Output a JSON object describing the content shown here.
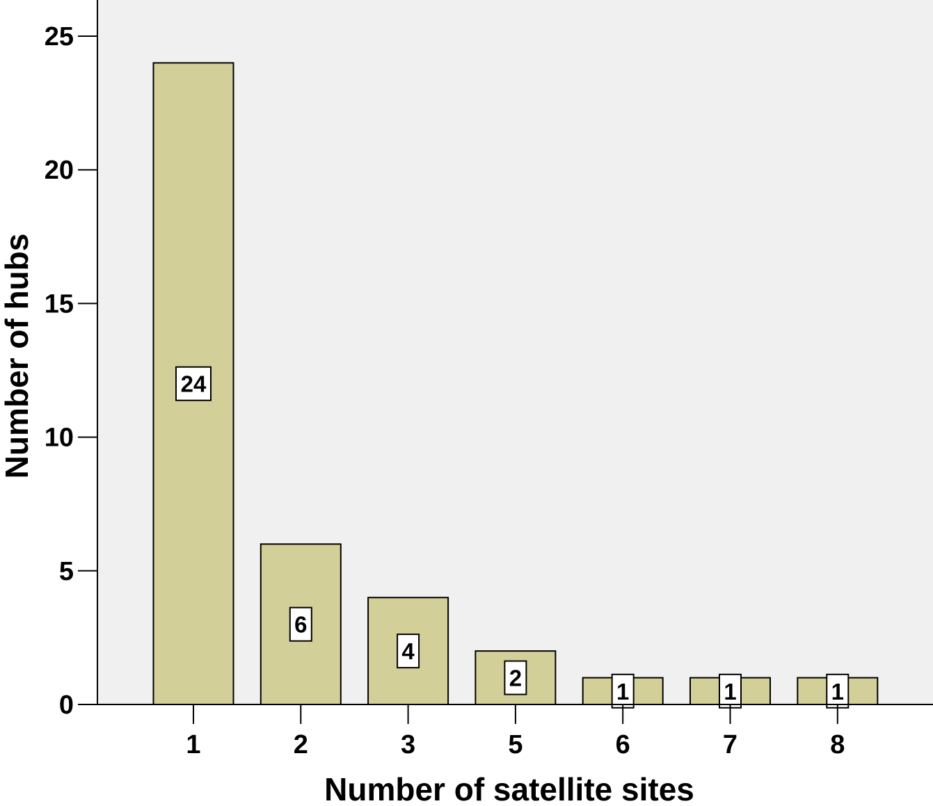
{
  "chart_data": {
    "type": "bar",
    "title": "",
    "xlabel": "Number of satellite sites",
    "ylabel": "Number of hubs",
    "categories": [
      "1",
      "2",
      "3",
      "5",
      "6",
      "7",
      "8"
    ],
    "values": [
      24,
      6,
      4,
      2,
      1,
      1,
      1
    ],
    "data_labels": [
      "24",
      "6",
      "4",
      "2",
      "1",
      "1",
      "1"
    ],
    "ylim": [
      0,
      26.4
    ],
    "yticks": [
      0,
      5,
      10,
      15,
      20,
      25
    ],
    "ytick_labels": [
      "0",
      "5",
      "10",
      "15",
      "20",
      "25"
    ],
    "grid": false,
    "legend": "none",
    "colors": {
      "bar_fill": "#d3cf98",
      "bar_stroke": "#000000",
      "plot_background": "#f0f0f0",
      "label_box_fill": "#ffffff"
    }
  }
}
